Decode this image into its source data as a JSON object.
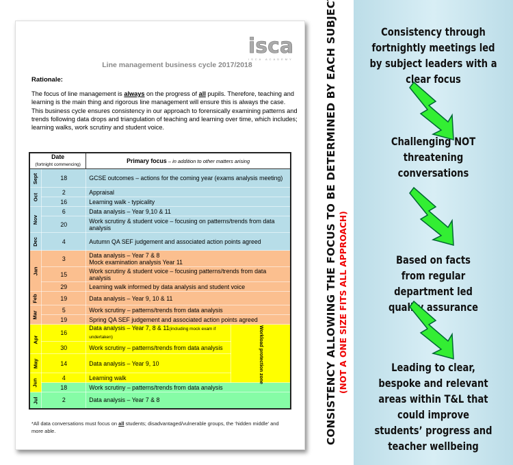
{
  "document": {
    "logo_text": "isca",
    "logo_caption": "ISCA ACADEMY",
    "title": "Line management business cycle 2017/2018",
    "rationale_heading": "Rationale:",
    "rationale": [
      "The focus of line management is ",
      "always",
      " on the progress of ",
      "all",
      " pupils. Therefore, teaching and learning is the main thing and rigorous line management will ensure this is always the case. This business cycle ensures consistency in our approach to forensically examining patterns and trends following data drops and triangulation of teaching and learning over time, which includes; learning walks, work scrutiny and student voice."
    ],
    "table": {
      "header_date": "Date",
      "header_date_sub": "(fortnight commencing)",
      "header_focus": "Primary focus",
      "header_focus_sub": " – in addition to other matters arising",
      "workload_label": "Workload protection zone",
      "colors": {
        "blue": "#b7dde8",
        "orange": "#fbbf8f",
        "yellow": "#ffff00",
        "green": "#86fca6"
      },
      "months": [
        {
          "name": "Sept",
          "color": "blue",
          "rows": [
            {
              "date": "18",
              "focus": "GCSE outcomes – actions for the coming year (exams analysis meeting)"
            }
          ]
        },
        {
          "name": "Oct",
          "color": "blue",
          "rows": [
            {
              "date": "2",
              "focus": "Appraisal"
            },
            {
              "date": "16",
              "focus": "Learning walk - typicality"
            }
          ]
        },
        {
          "name": "Nov",
          "color": "blue",
          "rows": [
            {
              "date": "6",
              "focus": "Data analysis – Year 9,10 & 11"
            },
            {
              "date": "20",
              "focus": "Work scrutiny & student voice – focusing on patterns/trends from data analysis"
            }
          ]
        },
        {
          "name": "Dec",
          "color": "blue",
          "rows": [
            {
              "date": "4",
              "focus": "Autumn QA SEF judgement and associated action points agreed"
            }
          ]
        },
        {
          "name": "Jan",
          "color": "orange",
          "rows": [
            {
              "date": "3",
              "focus": "Data analysis – Year 7 & 8\nMock examination analysis Year 11"
            },
            {
              "date": "15",
              "focus": "Work scrutiny & student voice – focusing patterns/trends from data analysis"
            },
            {
              "date": "29",
              "focus": "Learning walk informed by data analysis and student voice"
            }
          ]
        },
        {
          "name": "Feb",
          "color": "orange",
          "rows": [
            {
              "date": "19",
              "focus": "Data analysis – Year 9, 10 & 11"
            }
          ]
        },
        {
          "name": "Mar",
          "color": "orange",
          "rows": [
            {
              "date": "5",
              "focus": "Work scrutiny – patterns/trends from data analysis"
            },
            {
              "date": "19",
              "focus": "Spring QA SEF judgement and associated action points agreed"
            }
          ]
        },
        {
          "name": "Apr",
          "color": "yellow",
          "rows": [
            {
              "date": "16",
              "focus": "Data analysis – Year 7, 8 & 11",
              "note": "(including mock exam if undertaken)",
              "workload": true
            },
            {
              "date": "30",
              "focus": "Work scrutiny – patterns/trends from data analysis",
              "workload": true
            }
          ]
        },
        {
          "name": "May",
          "color": "yellow",
          "rows": [
            {
              "date": "14",
              "focus": "Data analysis – Year 9, 10",
              "workload": true
            }
          ]
        },
        {
          "name": "Jun",
          "color": "yellow",
          "rows": [
            {
              "date": "4",
              "focus": "Learning walk",
              "workload": true
            },
            {
              "date": "18",
              "focus": "Work scrutiny – patterns/trends from data analysis",
              "row_color": "green"
            }
          ]
        },
        {
          "name": "Jul",
          "color": "green",
          "rows": [
            {
              "date": "2",
              "focus": "Data analysis – Year 7 & 8"
            }
          ]
        }
      ]
    },
    "footnote": [
      "*All data conversations must focus on ",
      "all",
      " students; disadvantaged/vulnerable groups, the ‘hidden middle’ and more able."
    ]
  },
  "vertical_banner": {
    "main": "CONSISTENCY ALLOWING THE FOCUS TO BE DETERMINED BY EACH SUBJECT",
    "sub": "(NOT A ONE SIZE FITS ALL APPROACH)",
    "sub_color": "#e00000"
  },
  "panel": {
    "background": "#c6e4ee",
    "arrow_color": "#33ee33",
    "points": [
      "Consistency through fortnightly meetings led by subject leaders with a clear focus",
      "Challenging NOT threatening conversations",
      "Based on facts from regular department led quality assurance",
      "Leading to clear, bespoke and relevant areas within T&L that could improve students’ progress and teacher wellbeing"
    ]
  }
}
